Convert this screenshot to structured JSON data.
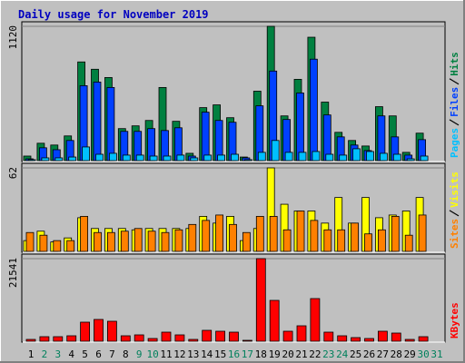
{
  "chart_data": [
    {
      "type": "bar",
      "title": "Daily usage for November 2019",
      "ylim": [
        0,
        1120
      ],
      "yticks": [
        1120
      ],
      "series": [
        {
          "name": "Hits",
          "color": "#008040",
          "values": [
            38,
            145,
            130,
            206,
            823,
            762,
            693,
            267,
            290,
            335,
            610,
            328,
            61,
            442,
            465,
            358,
            30,
            579,
            1120,
            373,
            678,
            1029,
            488,
            236,
            168,
            122,
            450,
            373,
            69,
            229,
            0
          ]
        },
        {
          "name": "Files",
          "color": "#0040ff",
          "values": [
            15,
            107,
            91,
            168,
            625,
            655,
            610,
            244,
            244,
            267,
            251,
            274,
            38,
            404,
            335,
            320,
            23,
            457,
            747,
            343,
            564,
            846,
            381,
            198,
            130,
            84,
            373,
            198,
            46,
            175,
            0
          ]
        },
        {
          "name": "Pages",
          "color": "#00c0ff",
          "values": [
            8,
            23,
            23,
            30,
            114,
            53,
            61,
            46,
            46,
            38,
            38,
            46,
            23,
            46,
            46,
            53,
            8,
            69,
            168,
            69,
            69,
            76,
            53,
            46,
            99,
            76,
            61,
            53,
            15,
            38,
            0
          ]
        }
      ]
    },
    {
      "type": "bar",
      "ylim": [
        0,
        62
      ],
      "yticks": [
        62
      ],
      "series": [
        {
          "name": "Visits",
          "color": "#ffff00",
          "values": [
            8,
            15,
            7,
            10,
            25,
            17,
            17,
            17,
            16,
            17,
            17,
            17,
            17,
            26,
            21,
            26,
            8,
            17,
            62,
            35,
            30,
            30,
            21,
            40,
            21,
            40,
            25,
            27,
            30,
            40,
            0
          ]
        },
        {
          "name": "Sites",
          "color": "#ff8000",
          "values": [
            14,
            12,
            8,
            8,
            26,
            14,
            14,
            15,
            17,
            15,
            14,
            16,
            20,
            23,
            27,
            20,
            14,
            26,
            26,
            16,
            30,
            23,
            16,
            16,
            21,
            13,
            16,
            26,
            12,
            27,
            0
          ]
        }
      ]
    },
    {
      "type": "bar",
      "ylim": [
        0,
        21541
      ],
      "yticks": [
        21541
      ],
      "categories": [
        "1",
        "2",
        "3",
        "4",
        "5",
        "6",
        "7",
        "8",
        "9",
        "10",
        "11",
        "12",
        "13",
        "14",
        "15",
        "16",
        "17",
        "18",
        "19",
        "20",
        "21",
        "22",
        "23",
        "24",
        "25",
        "26",
        "27",
        "28",
        "29",
        "30",
        "31"
      ],
      "category_colors": [
        "#000000",
        "#00805c",
        "#00805c",
        "#000000",
        "#000000",
        "#000000",
        "#000000",
        "#000000",
        "#00805c",
        "#00805c",
        "#000000",
        "#000000",
        "#000000",
        "#000000",
        "#000000",
        "#00805c",
        "#00805c",
        "#000000",
        "#000000",
        "#000000",
        "#000000",
        "#000000",
        "#00805c",
        "#00805c",
        "#000000",
        "#000000",
        "#000000",
        "#000000",
        "#000000",
        "#00805c",
        "#00805c"
      ],
      "series": [
        {
          "name": "KBytes",
          "color": "#ff0000",
          "values": [
            473,
            1183,
            1183,
            1420,
            4971,
            5681,
            5208,
            1420,
            1657,
            710,
            2367,
            1657,
            473,
            2841,
            2604,
            2367,
            237,
            21541,
            10652,
            2604,
            4024,
            11125,
            2367,
            1420,
            947,
            710,
            2604,
            2130,
            473,
            1183,
            0
          ]
        }
      ]
    }
  ]
}
